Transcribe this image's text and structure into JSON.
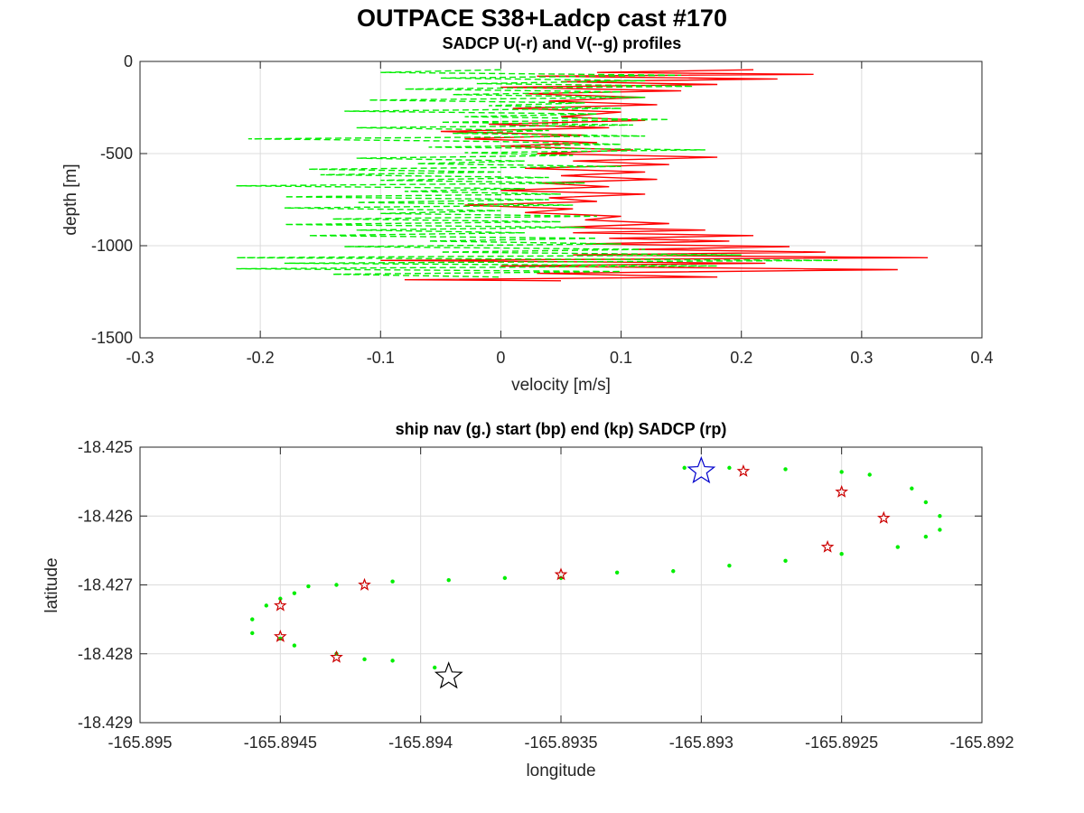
{
  "figure": {
    "title": "OUTPACE S38+Ladcp cast #170"
  },
  "chart_data": [
    {
      "type": "line",
      "title": "SADCP U(-r) and V(--g) profiles",
      "xlabel": "velocity [m/s]",
      "ylabel": "depth [m]",
      "xlim": [
        -0.3,
        0.4
      ],
      "ylim": [
        -1500,
        0
      ],
      "xticks": [
        "-0.3",
        "-0.2",
        "-0.1",
        "0",
        "0.1",
        "0.2",
        "0.3",
        "0.4"
      ],
      "yticks": [
        "-1500",
        "-1000",
        "-500",
        "0"
      ],
      "grid": true,
      "colors": {
        "U": "#ff0000",
        "V": "#00ee00"
      },
      "series": [
        {
          "name": "U",
          "style": "solid red",
          "points": [
            [
              0.21,
              -45
            ],
            [
              0.08,
              -60
            ],
            [
              0.26,
              -70
            ],
            [
              0.03,
              -80
            ],
            [
              0.23,
              -95
            ],
            [
              0.05,
              -110
            ],
            [
              0.18,
              -125
            ],
            [
              0.0,
              -140
            ],
            [
              0.15,
              -160
            ],
            [
              0.02,
              -175
            ],
            [
              0.12,
              -195
            ],
            [
              0.04,
              -215
            ],
            [
              0.13,
              -235
            ],
            [
              0.01,
              -255
            ],
            [
              0.1,
              -275
            ],
            [
              0.05,
              -300
            ],
            [
              0.12,
              -320
            ],
            [
              -0.01,
              -340
            ],
            [
              0.09,
              -360
            ],
            [
              -0.05,
              -380
            ],
            [
              0.07,
              -400
            ],
            [
              -0.03,
              -420
            ],
            [
              0.08,
              -440
            ],
            [
              0.0,
              -460
            ],
            [
              0.11,
              -480
            ],
            [
              0.03,
              -500
            ],
            [
              0.18,
              -520
            ],
            [
              0.06,
              -540
            ],
            [
              0.14,
              -560
            ],
            [
              0.02,
              -580
            ],
            [
              0.12,
              -600
            ],
            [
              0.05,
              -620
            ],
            [
              0.13,
              -640
            ],
            [
              0.03,
              -660
            ],
            [
              0.09,
              -680
            ],
            [
              0.0,
              -700
            ],
            [
              0.12,
              -720
            ],
            [
              0.04,
              -740
            ],
            [
              0.08,
              -760
            ],
            [
              -0.03,
              -780
            ],
            [
              0.06,
              -800
            ],
            [
              0.02,
              -820
            ],
            [
              0.1,
              -840
            ],
            [
              0.07,
              -860
            ],
            [
              0.14,
              -880
            ],
            [
              0.05,
              -900
            ],
            [
              0.17,
              -915
            ],
            [
              0.06,
              -930
            ],
            [
              0.21,
              -945
            ],
            [
              0.09,
              -960
            ],
            [
              0.19,
              -975
            ],
            [
              0.07,
              -990
            ],
            [
              0.24,
              -1005
            ],
            [
              0.11,
              -1020
            ],
            [
              0.27,
              -1035
            ],
            [
              0.06,
              -1050
            ],
            [
              0.355,
              -1065
            ],
            [
              -0.1,
              -1080
            ],
            [
              0.22,
              -1095
            ],
            [
              0.0,
              -1110
            ],
            [
              0.33,
              -1130
            ],
            [
              0.03,
              -1150
            ],
            [
              0.18,
              -1170
            ],
            [
              -0.08,
              -1185
            ],
            [
              0.05,
              -1190
            ]
          ]
        },
        {
          "name": "V",
          "style": "dashed green",
          "points": [
            [
              0.0,
              -45
            ],
            [
              -0.1,
              -60
            ],
            [
              0.15,
              -75
            ],
            [
              -0.05,
              -90
            ],
            [
              0.12,
              -105
            ],
            [
              -0.02,
              -120
            ],
            [
              0.16,
              -135
            ],
            [
              -0.08,
              -150
            ],
            [
              0.1,
              -165
            ],
            [
              -0.04,
              -180
            ],
            [
              0.12,
              -195
            ],
            [
              -0.11,
              -210
            ],
            [
              0.07,
              -225
            ],
            [
              -0.01,
              -240
            ],
            [
              0.1,
              -255
            ],
            [
              -0.13,
              -270
            ],
            [
              0.08,
              -285
            ],
            [
              -0.03,
              -300
            ],
            [
              0.14,
              -315
            ],
            [
              -0.05,
              -330
            ],
            [
              0.11,
              -345
            ],
            [
              -0.12,
              -360
            ],
            [
              0.04,
              -375
            ],
            [
              -0.04,
              -390
            ],
            [
              0.12,
              -405
            ],
            [
              -0.21,
              -420
            ],
            [
              0.0,
              -435
            ],
            [
              0.1,
              -450
            ],
            [
              -0.06,
              -465
            ],
            [
              0.17,
              -480
            ],
            [
              -0.03,
              -495
            ],
            [
              0.06,
              -510
            ],
            [
              -0.12,
              -525
            ],
            [
              0.02,
              -540
            ],
            [
              -0.07,
              -555
            ],
            [
              0.1,
              -570
            ],
            [
              -0.16,
              -585
            ],
            [
              0.0,
              -600
            ],
            [
              -0.15,
              -615
            ],
            [
              0.04,
              -630
            ],
            [
              -0.1,
              -645
            ],
            [
              0.07,
              -660
            ],
            [
              -0.22,
              -675
            ],
            [
              0.02,
              -690
            ],
            [
              -0.08,
              -705
            ],
            [
              0.05,
              -720
            ],
            [
              -0.18,
              -735
            ],
            [
              0.04,
              -750
            ],
            [
              -0.12,
              -765
            ],
            [
              0.06,
              -780
            ],
            [
              -0.18,
              -795
            ],
            [
              0.0,
              -810
            ],
            [
              -0.1,
              -825
            ],
            [
              0.08,
              -840
            ],
            [
              -0.14,
              -855
            ],
            [
              0.05,
              -870
            ],
            [
              -0.18,
              -885
            ],
            [
              0.07,
              -900
            ],
            [
              -0.12,
              -915
            ],
            [
              0.02,
              -930
            ],
            [
              -0.16,
              -945
            ],
            [
              0.08,
              -960
            ],
            [
              -0.06,
              -975
            ],
            [
              0.1,
              -990
            ],
            [
              -0.13,
              -1005
            ],
            [
              0.12,
              -1020
            ],
            [
              -0.05,
              -1035
            ],
            [
              0.2,
              -1050
            ],
            [
              -0.22,
              -1065
            ],
            [
              0.28,
              -1080
            ],
            [
              -0.18,
              -1095
            ],
            [
              0.18,
              -1110
            ],
            [
              -0.22,
              -1125
            ],
            [
              0.1,
              -1140
            ],
            [
              -0.14,
              -1155
            ],
            [
              0.0,
              -1170
            ]
          ]
        }
      ]
    },
    {
      "type": "scatter",
      "title": "ship nav (g.) start (bp) end (kp) SADCP (rp)",
      "xlabel": "longitude",
      "ylabel": "latitude",
      "xlim": [
        -165.895,
        -165.892
      ],
      "ylim": [
        -18.429,
        -18.425
      ],
      "xticks": [
        "-165.895",
        "-165.8945",
        "-165.894",
        "-165.8935",
        "-165.893",
        "-165.8925",
        "-165.892"
      ],
      "yticks": [
        "-18.429",
        "-18.428",
        "-18.427",
        "-18.426",
        "-18.425"
      ],
      "grid": true,
      "colors": {
        "nav": "#00ee00",
        "start": "#0000cc",
        "end": "#000000",
        "sadcp": "#cc0000"
      },
      "series": [
        {
          "name": "nav",
          "marker": "dot",
          "points": [
            [
              -165.89306,
              -18.4253
            ],
            [
              -165.8929,
              -18.4253
            ],
            [
              -165.8927,
              -18.42532
            ],
            [
              -165.8925,
              -18.42536
            ],
            [
              -165.8924,
              -18.4254
            ],
            [
              -165.89225,
              -18.4256
            ],
            [
              -165.8922,
              -18.4258
            ],
            [
              -165.89215,
              -18.426
            ],
            [
              -165.89215,
              -18.4262
            ],
            [
              -165.8922,
              -18.4263
            ],
            [
              -165.8923,
              -18.42645
            ],
            [
              -165.8925,
              -18.42655
            ],
            [
              -165.8927,
              -18.42665
            ],
            [
              -165.8929,
              -18.42672
            ],
            [
              -165.8931,
              -18.4268
            ],
            [
              -165.8933,
              -18.42682
            ],
            [
              -165.8935,
              -18.4269
            ],
            [
              -165.8937,
              -18.4269
            ],
            [
              -165.8939,
              -18.42693
            ],
            [
              -165.8941,
              -18.42695
            ],
            [
              -165.8943,
              -18.427
            ],
            [
              -165.8944,
              -18.42702
            ],
            [
              -165.89445,
              -18.42712
            ],
            [
              -165.8945,
              -18.4272
            ],
            [
              -165.89455,
              -18.4273
            ],
            [
              -165.8946,
              -18.4275
            ],
            [
              -165.8946,
              -18.4277
            ],
            [
              -165.8945,
              -18.42778
            ],
            [
              -165.89445,
              -18.42788
            ],
            [
              -165.8943,
              -18.428
            ],
            [
              -165.8942,
              -18.42808
            ],
            [
              -165.8941,
              -18.4281
            ],
            [
              -165.89395,
              -18.4282
            ]
          ]
        },
        {
          "name": "start",
          "marker": "star-blue",
          "points": [
            [
              -165.893,
              -18.42535
            ]
          ]
        },
        {
          "name": "end",
          "marker": "star-black",
          "points": [
            [
              -165.8939,
              -18.42833
            ]
          ]
        },
        {
          "name": "SADCP",
          "marker": "star-red",
          "points": [
            [
              -165.89285,
              -18.42535
            ],
            [
              -165.8925,
              -18.42565
            ],
            [
              -165.89235,
              -18.42603
            ],
            [
              -165.89255,
              -18.42645
            ],
            [
              -165.8935,
              -18.42685
            ],
            [
              -165.8942,
              -18.427
            ],
            [
              -165.8945,
              -18.4273
            ],
            [
              -165.8945,
              -18.42775
            ],
            [
              -165.8943,
              -18.42805
            ]
          ]
        }
      ]
    }
  ]
}
